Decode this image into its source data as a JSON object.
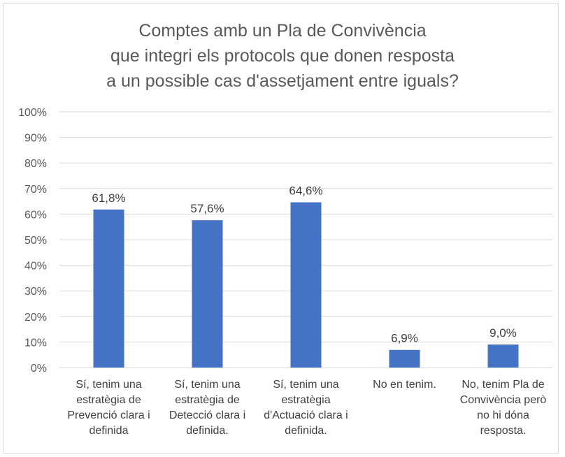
{
  "chart_data": {
    "type": "bar",
    "title": "Comptes amb un Pla de Convivència\nque integri els protocols que donen resposta\na un possible cas d'assetjament entre iguals?",
    "categories": [
      "Sí, tenim una\nestratègia de\nPrevenció clara i\ndefinida",
      "Sí, tenim una\nestratègia de\nDetecció clara i\ndefinida.",
      "Sí, tenim una\nestratègia\nd'Actuació clara i\ndefinida.",
      "No en tenim.",
      "No, tenim Pla de\nConvivència però\nno hi dóna\nresposta."
    ],
    "values": [
      61.8,
      57.6,
      64.6,
      6.9,
      9.0
    ],
    "data_labels": [
      "61,8%",
      "57,6%",
      "64,6%",
      "6,9%",
      "9,0%"
    ],
    "ylim": [
      0,
      100
    ],
    "yticks": [
      "0%",
      "10%",
      "20%",
      "30%",
      "40%",
      "50%",
      "60%",
      "70%",
      "80%",
      "90%",
      "100%"
    ],
    "xlabel": "",
    "ylabel": "",
    "grid": true,
    "legend": "none",
    "bar_color": "#4472c4"
  }
}
